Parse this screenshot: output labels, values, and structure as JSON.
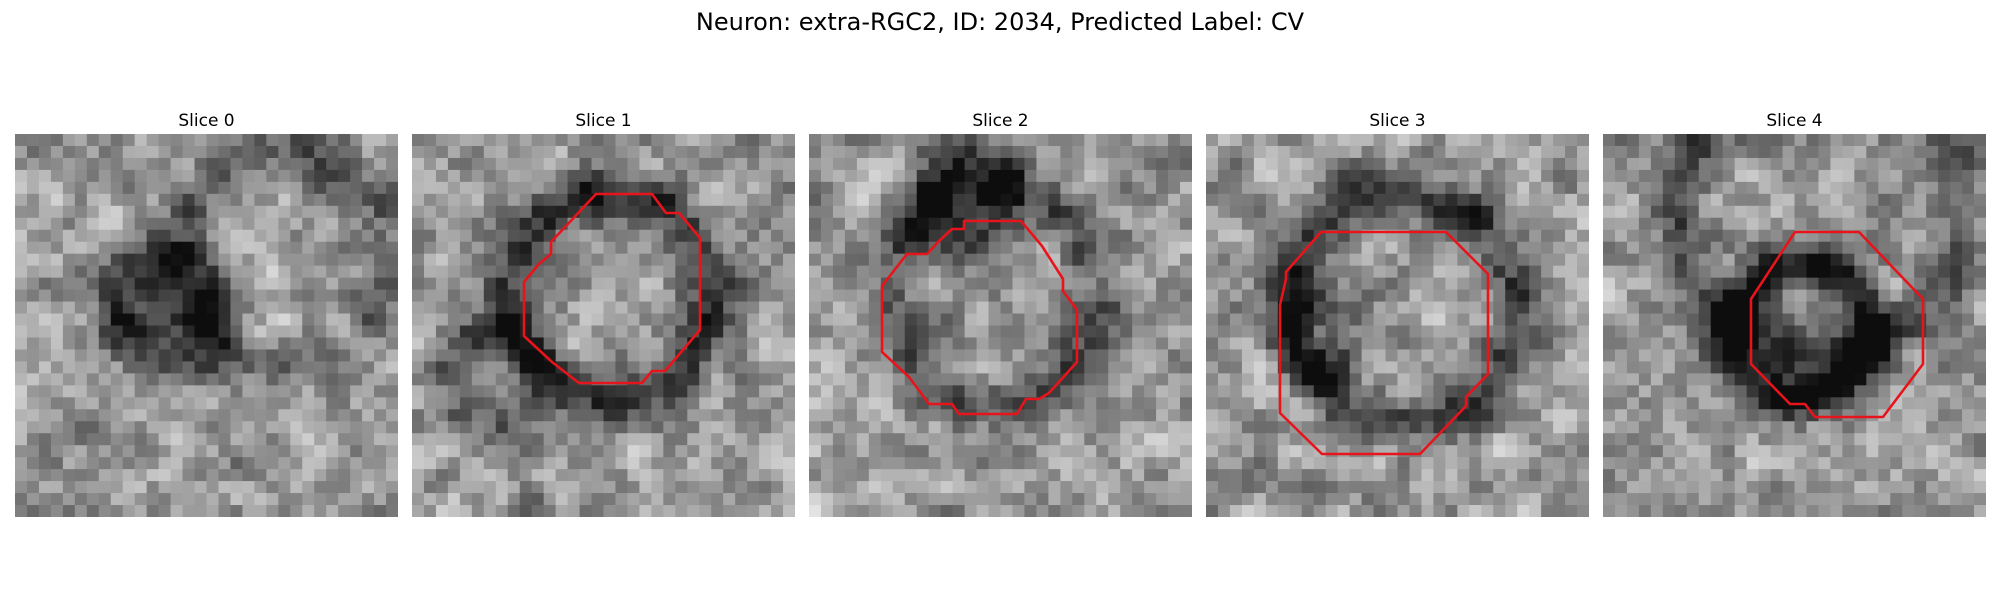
{
  "figure": {
    "title": "Neuron: extra-RGC2, ID: 2034, Predicted Label: CV"
  },
  "panels": [
    {
      "title": "Slice 0",
      "has_outline": false,
      "seed": 11
    },
    {
      "title": "Slice 1",
      "has_outline": true,
      "seed": 23
    },
    {
      "title": "Slice 2",
      "has_outline": true,
      "seed": 37
    },
    {
      "title": "Slice 3",
      "has_outline": true,
      "seed": 41
    },
    {
      "title": "Slice 4",
      "has_outline": true,
      "seed": 53
    }
  ],
  "colors": {
    "outline": "#e8141b",
    "background": "#ffffff"
  }
}
